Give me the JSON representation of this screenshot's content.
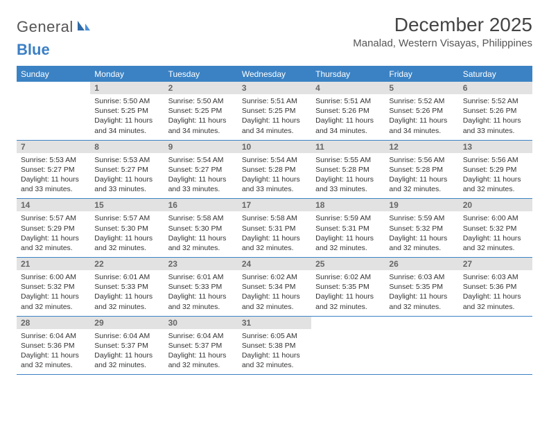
{
  "logo": {
    "part1": "General",
    "part2": "Blue"
  },
  "title": "December 2025",
  "location": "Manalad, Western Visayas, Philippines",
  "colors": {
    "header_bg": "#3b82c4",
    "header_text": "#ffffff",
    "daynum_bg": "#e2e2e2",
    "daynum_text": "#666666",
    "rule": "#3b82c4",
    "body_text": "#333333",
    "logo_gray": "#555555",
    "logo_blue": "#3b7fc4"
  },
  "typography": {
    "title_fontsize": 28,
    "location_fontsize": 15,
    "dow_fontsize": 12,
    "daynum_fontsize": 12,
    "cell_fontsize": 10.5
  },
  "dow": [
    "Sunday",
    "Monday",
    "Tuesday",
    "Wednesday",
    "Thursday",
    "Friday",
    "Saturday"
  ],
  "weeks": [
    [
      {
        "n": "",
        "sr": "",
        "ss": "",
        "dl": ""
      },
      {
        "n": "1",
        "sr": "Sunrise: 5:50 AM",
        "ss": "Sunset: 5:25 PM",
        "dl": "Daylight: 11 hours and 34 minutes."
      },
      {
        "n": "2",
        "sr": "Sunrise: 5:50 AM",
        "ss": "Sunset: 5:25 PM",
        "dl": "Daylight: 11 hours and 34 minutes."
      },
      {
        "n": "3",
        "sr": "Sunrise: 5:51 AM",
        "ss": "Sunset: 5:25 PM",
        "dl": "Daylight: 11 hours and 34 minutes."
      },
      {
        "n": "4",
        "sr": "Sunrise: 5:51 AM",
        "ss": "Sunset: 5:26 PM",
        "dl": "Daylight: 11 hours and 34 minutes."
      },
      {
        "n": "5",
        "sr": "Sunrise: 5:52 AM",
        "ss": "Sunset: 5:26 PM",
        "dl": "Daylight: 11 hours and 34 minutes."
      },
      {
        "n": "6",
        "sr": "Sunrise: 5:52 AM",
        "ss": "Sunset: 5:26 PM",
        "dl": "Daylight: 11 hours and 33 minutes."
      }
    ],
    [
      {
        "n": "7",
        "sr": "Sunrise: 5:53 AM",
        "ss": "Sunset: 5:27 PM",
        "dl": "Daylight: 11 hours and 33 minutes."
      },
      {
        "n": "8",
        "sr": "Sunrise: 5:53 AM",
        "ss": "Sunset: 5:27 PM",
        "dl": "Daylight: 11 hours and 33 minutes."
      },
      {
        "n": "9",
        "sr": "Sunrise: 5:54 AM",
        "ss": "Sunset: 5:27 PM",
        "dl": "Daylight: 11 hours and 33 minutes."
      },
      {
        "n": "10",
        "sr": "Sunrise: 5:54 AM",
        "ss": "Sunset: 5:28 PM",
        "dl": "Daylight: 11 hours and 33 minutes."
      },
      {
        "n": "11",
        "sr": "Sunrise: 5:55 AM",
        "ss": "Sunset: 5:28 PM",
        "dl": "Daylight: 11 hours and 33 minutes."
      },
      {
        "n": "12",
        "sr": "Sunrise: 5:56 AM",
        "ss": "Sunset: 5:28 PM",
        "dl": "Daylight: 11 hours and 32 minutes."
      },
      {
        "n": "13",
        "sr": "Sunrise: 5:56 AM",
        "ss": "Sunset: 5:29 PM",
        "dl": "Daylight: 11 hours and 32 minutes."
      }
    ],
    [
      {
        "n": "14",
        "sr": "Sunrise: 5:57 AM",
        "ss": "Sunset: 5:29 PM",
        "dl": "Daylight: 11 hours and 32 minutes."
      },
      {
        "n": "15",
        "sr": "Sunrise: 5:57 AM",
        "ss": "Sunset: 5:30 PM",
        "dl": "Daylight: 11 hours and 32 minutes."
      },
      {
        "n": "16",
        "sr": "Sunrise: 5:58 AM",
        "ss": "Sunset: 5:30 PM",
        "dl": "Daylight: 11 hours and 32 minutes."
      },
      {
        "n": "17",
        "sr": "Sunrise: 5:58 AM",
        "ss": "Sunset: 5:31 PM",
        "dl": "Daylight: 11 hours and 32 minutes."
      },
      {
        "n": "18",
        "sr": "Sunrise: 5:59 AM",
        "ss": "Sunset: 5:31 PM",
        "dl": "Daylight: 11 hours and 32 minutes."
      },
      {
        "n": "19",
        "sr": "Sunrise: 5:59 AM",
        "ss": "Sunset: 5:32 PM",
        "dl": "Daylight: 11 hours and 32 minutes."
      },
      {
        "n": "20",
        "sr": "Sunrise: 6:00 AM",
        "ss": "Sunset: 5:32 PM",
        "dl": "Daylight: 11 hours and 32 minutes."
      }
    ],
    [
      {
        "n": "21",
        "sr": "Sunrise: 6:00 AM",
        "ss": "Sunset: 5:32 PM",
        "dl": "Daylight: 11 hours and 32 minutes."
      },
      {
        "n": "22",
        "sr": "Sunrise: 6:01 AM",
        "ss": "Sunset: 5:33 PM",
        "dl": "Daylight: 11 hours and 32 minutes."
      },
      {
        "n": "23",
        "sr": "Sunrise: 6:01 AM",
        "ss": "Sunset: 5:33 PM",
        "dl": "Daylight: 11 hours and 32 minutes."
      },
      {
        "n": "24",
        "sr": "Sunrise: 6:02 AM",
        "ss": "Sunset: 5:34 PM",
        "dl": "Daylight: 11 hours and 32 minutes."
      },
      {
        "n": "25",
        "sr": "Sunrise: 6:02 AM",
        "ss": "Sunset: 5:35 PM",
        "dl": "Daylight: 11 hours and 32 minutes."
      },
      {
        "n": "26",
        "sr": "Sunrise: 6:03 AM",
        "ss": "Sunset: 5:35 PM",
        "dl": "Daylight: 11 hours and 32 minutes."
      },
      {
        "n": "27",
        "sr": "Sunrise: 6:03 AM",
        "ss": "Sunset: 5:36 PM",
        "dl": "Daylight: 11 hours and 32 minutes."
      }
    ],
    [
      {
        "n": "28",
        "sr": "Sunrise: 6:04 AM",
        "ss": "Sunset: 5:36 PM",
        "dl": "Daylight: 11 hours and 32 minutes."
      },
      {
        "n": "29",
        "sr": "Sunrise: 6:04 AM",
        "ss": "Sunset: 5:37 PM",
        "dl": "Daylight: 11 hours and 32 minutes."
      },
      {
        "n": "30",
        "sr": "Sunrise: 6:04 AM",
        "ss": "Sunset: 5:37 PM",
        "dl": "Daylight: 11 hours and 32 minutes."
      },
      {
        "n": "31",
        "sr": "Sunrise: 6:05 AM",
        "ss": "Sunset: 5:38 PM",
        "dl": "Daylight: 11 hours and 32 minutes."
      },
      {
        "n": "",
        "sr": "",
        "ss": "",
        "dl": ""
      },
      {
        "n": "",
        "sr": "",
        "ss": "",
        "dl": ""
      },
      {
        "n": "",
        "sr": "",
        "ss": "",
        "dl": ""
      }
    ]
  ]
}
